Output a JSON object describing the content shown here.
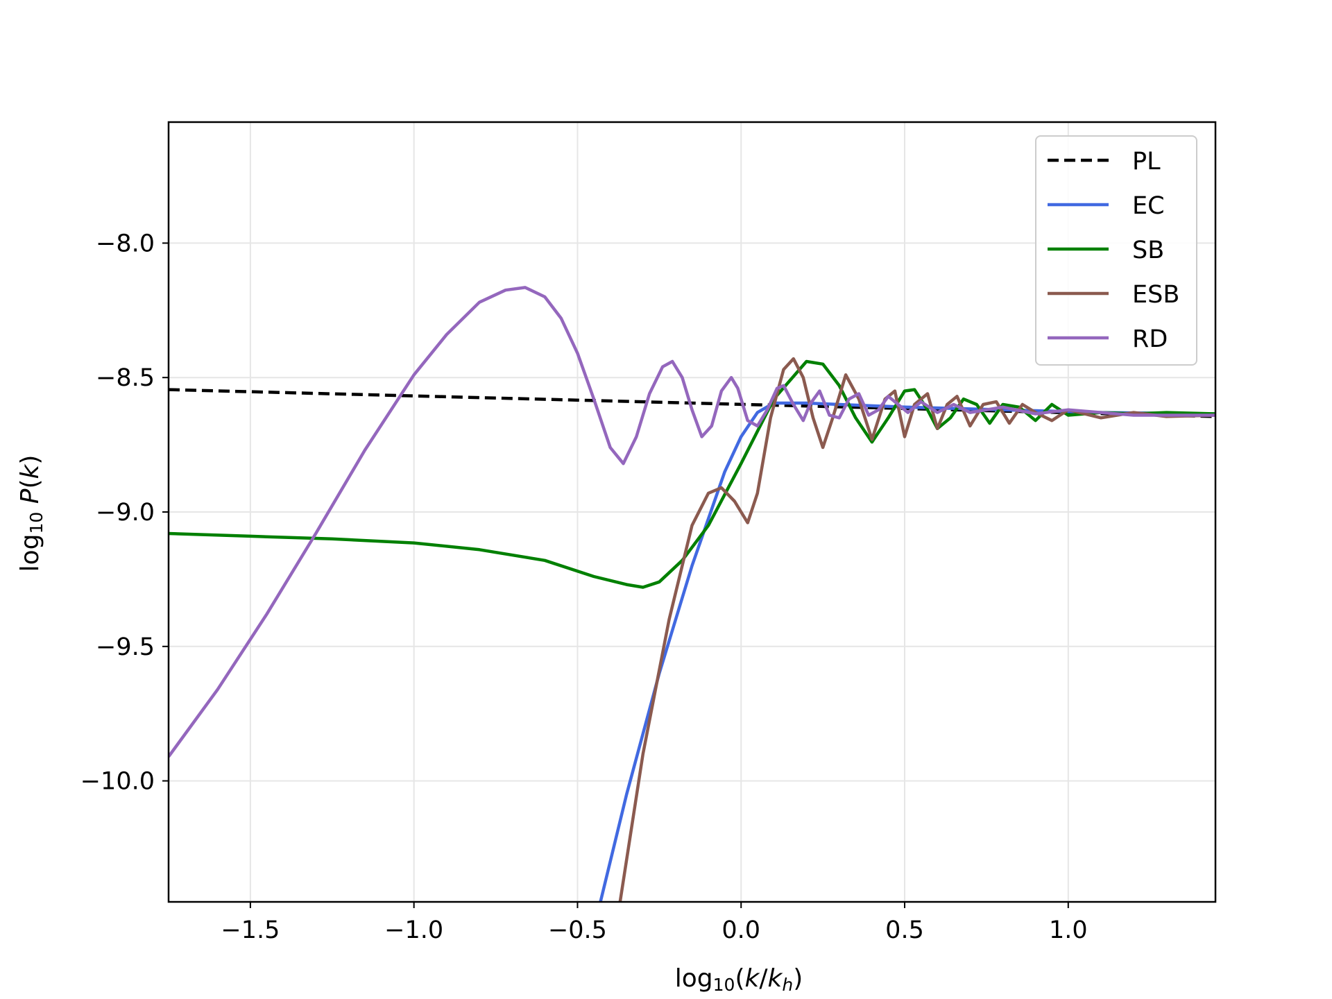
{
  "chart_data": {
    "type": "line",
    "title": "",
    "xlabel": "log10(k/kh)",
    "ylabel": "log10 P(k)",
    "xlim": [
      -1.75,
      1.45
    ],
    "ylim": [
      -10.45,
      -7.55
    ],
    "xticks": [
      -1.5,
      -1.0,
      -0.5,
      0.0,
      0.5,
      1.0
    ],
    "xtick_labels": [
      "−1.5",
      "−1.0",
      "−0.5",
      "0.0",
      "0.5",
      "1.0"
    ],
    "yticks": [
      -8.0,
      -8.5,
      -9.0,
      -9.5,
      -10.0
    ],
    "ytick_labels": [
      "−8.0",
      "−8.5",
      "−9.0",
      "−9.5",
      "−10.0"
    ],
    "grid": true,
    "legend_position": "top-right",
    "series": [
      {
        "name": "PL",
        "color": "#000000",
        "dash": true,
        "x": [
          -1.75,
          1.45
        ],
        "y": [
          -8.545,
          -8.645
        ]
      },
      {
        "name": "EC",
        "color": "#4169e1",
        "x": [
          -0.43,
          -0.35,
          -0.25,
          -0.15,
          -0.05,
          0.0,
          0.05,
          0.1,
          0.2,
          0.3,
          0.5,
          0.8,
          1.1,
          1.45
        ],
        "y": [
          -10.45,
          -10.05,
          -9.6,
          -9.2,
          -8.85,
          -8.72,
          -8.63,
          -8.595,
          -8.595,
          -8.6,
          -8.61,
          -8.62,
          -8.63,
          -8.635
        ]
      },
      {
        "name": "SB",
        "color": "#008000",
        "x": [
          -1.75,
          -1.5,
          -1.25,
          -1.0,
          -0.8,
          -0.6,
          -0.45,
          -0.35,
          -0.3,
          -0.25,
          -0.18,
          -0.1,
          0.0,
          0.1,
          0.2,
          0.25,
          0.3,
          0.35,
          0.4,
          0.45,
          0.5,
          0.53,
          0.57,
          0.6,
          0.64,
          0.68,
          0.72,
          0.76,
          0.8,
          0.85,
          0.9,
          0.95,
          1.0,
          1.1,
          1.2,
          1.3,
          1.45
        ],
        "y": [
          -9.08,
          -9.09,
          -9.1,
          -9.115,
          -9.14,
          -9.18,
          -9.24,
          -9.27,
          -9.28,
          -9.26,
          -9.18,
          -9.05,
          -8.82,
          -8.58,
          -8.44,
          -8.45,
          -8.53,
          -8.65,
          -8.74,
          -8.65,
          -8.55,
          -8.545,
          -8.62,
          -8.69,
          -8.65,
          -8.58,
          -8.6,
          -8.67,
          -8.6,
          -8.61,
          -8.66,
          -8.6,
          -8.64,
          -8.63,
          -8.635,
          -8.63,
          -8.635
        ]
      },
      {
        "name": "ESB",
        "color": "#8b5a4f",
        "x": [
          -0.37,
          -0.3,
          -0.22,
          -0.15,
          -0.1,
          -0.06,
          -0.02,
          0.02,
          0.05,
          0.09,
          0.13,
          0.16,
          0.19,
          0.22,
          0.25,
          0.28,
          0.32,
          0.36,
          0.4,
          0.44,
          0.47,
          0.5,
          0.53,
          0.57,
          0.6,
          0.63,
          0.66,
          0.7,
          0.74,
          0.78,
          0.82,
          0.86,
          0.9,
          0.95,
          1.0,
          1.1,
          1.2,
          1.3,
          1.45
        ],
        "y": [
          -10.45,
          -9.9,
          -9.4,
          -9.05,
          -8.93,
          -8.91,
          -8.96,
          -9.04,
          -8.93,
          -8.65,
          -8.47,
          -8.43,
          -8.5,
          -8.65,
          -8.76,
          -8.65,
          -8.49,
          -8.58,
          -8.73,
          -8.58,
          -8.55,
          -8.72,
          -8.6,
          -8.56,
          -8.69,
          -8.6,
          -8.57,
          -8.68,
          -8.6,
          -8.59,
          -8.67,
          -8.6,
          -8.63,
          -8.66,
          -8.62,
          -8.65,
          -8.63,
          -8.645,
          -8.64
        ]
      },
      {
        "name": "RD",
        "color": "#9467bd",
        "x": [
          -1.75,
          -1.6,
          -1.45,
          -1.3,
          -1.15,
          -1.0,
          -0.9,
          -0.8,
          -0.72,
          -0.66,
          -0.6,
          -0.55,
          -0.5,
          -0.45,
          -0.4,
          -0.36,
          -0.32,
          -0.28,
          -0.24,
          -0.21,
          -0.18,
          -0.15,
          -0.12,
          -0.09,
          -0.06,
          -0.03,
          -0.01,
          0.02,
          0.05,
          0.08,
          0.11,
          0.13,
          0.16,
          0.19,
          0.21,
          0.24,
          0.27,
          0.3,
          0.33,
          0.36,
          0.39,
          0.42,
          0.45,
          0.48,
          0.51,
          0.55,
          0.6,
          0.65,
          0.7,
          0.8,
          0.9,
          1.0,
          1.2,
          1.45
        ],
        "y": [
          -9.91,
          -9.66,
          -9.38,
          -9.08,
          -8.77,
          -8.49,
          -8.34,
          -8.22,
          -8.175,
          -8.165,
          -8.2,
          -8.28,
          -8.41,
          -8.58,
          -8.76,
          -8.82,
          -8.72,
          -8.56,
          -8.46,
          -8.44,
          -8.5,
          -8.62,
          -8.72,
          -8.68,
          -8.55,
          -8.5,
          -8.54,
          -8.66,
          -8.68,
          -8.62,
          -8.54,
          -8.53,
          -8.6,
          -8.66,
          -8.6,
          -8.55,
          -8.64,
          -8.65,
          -8.58,
          -8.56,
          -8.64,
          -8.62,
          -8.57,
          -8.6,
          -8.63,
          -8.59,
          -8.63,
          -8.6,
          -8.63,
          -8.61,
          -8.635,
          -8.62,
          -8.64,
          -8.64
        ]
      }
    ]
  }
}
